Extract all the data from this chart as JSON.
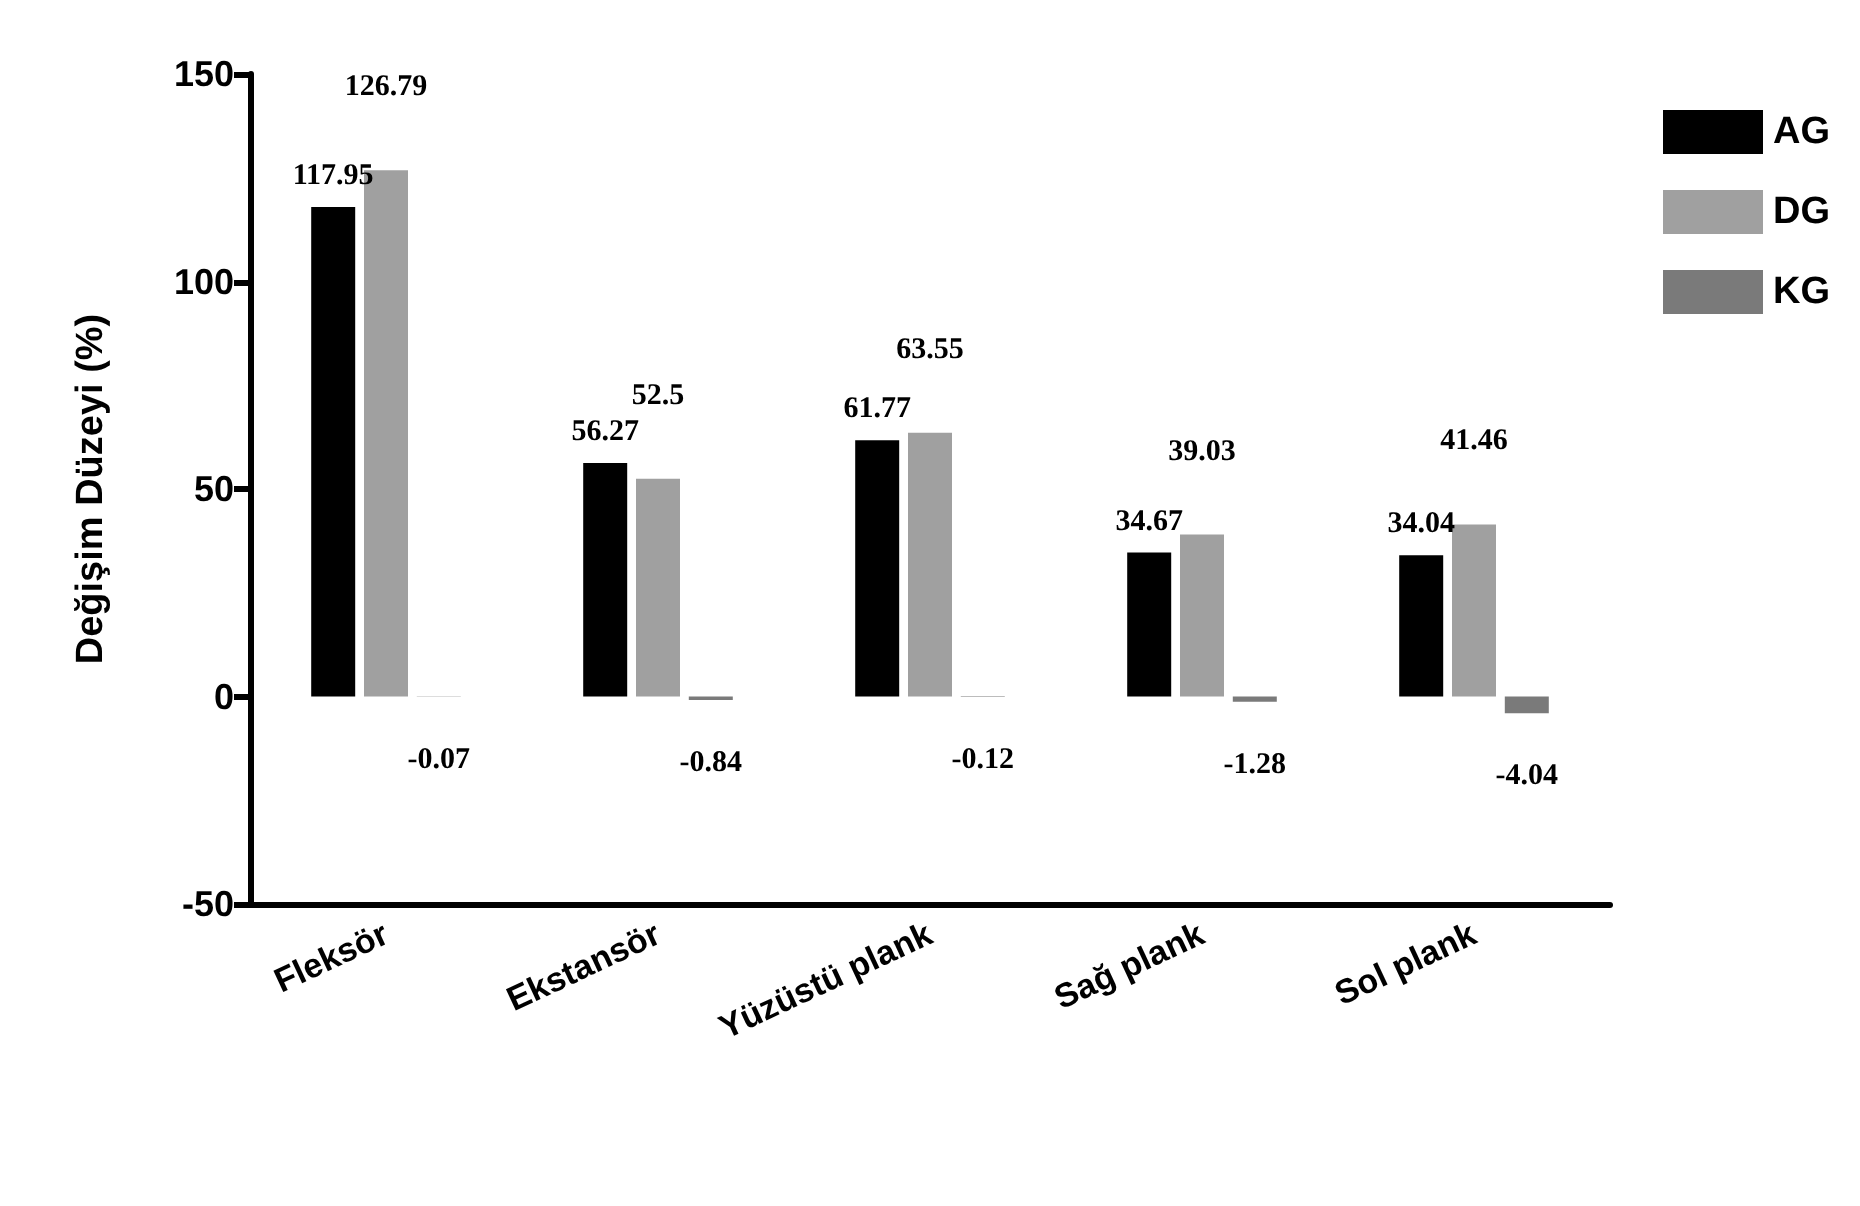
{
  "chart_data": {
    "type": "bar",
    "ylabel": "Değişim Düzeyi (%)",
    "categories": [
      "Fleksör",
      "Ekstansör",
      "Yüzüstü plank",
      "Sağ plank",
      "Sol plank"
    ],
    "series": [
      {
        "name": "AG",
        "color": "#000000",
        "values": [
          117.95,
          56.27,
          61.77,
          34.67,
          34.04
        ]
      },
      {
        "name": "DG",
        "color": "#a0a0a0",
        "values": [
          126.79,
          52.5,
          63.55,
          39.03,
          41.46
        ]
      },
      {
        "name": "KG",
        "color": "#7a7a7a",
        "values": [
          -0.07,
          -0.84,
          -0.12,
          -1.28,
          -4.04
        ]
      }
    ],
    "ylim": [
      -50,
      150
    ],
    "yticks": [
      -50,
      0,
      50,
      100,
      150
    ],
    "grid": false,
    "legend": "top right",
    "data_labels": true
  }
}
